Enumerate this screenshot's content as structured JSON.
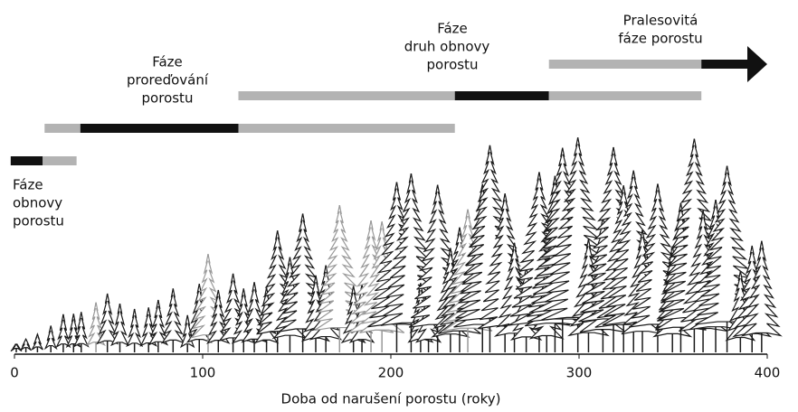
{
  "chart_data": {
    "type": "timeline",
    "xlabel": "Doba od narušení porostu (roky)",
    "xlim": [
      0,
      400
    ],
    "xticks": [
      0,
      100,
      200,
      300,
      400
    ],
    "colors": {
      "core": "#111111",
      "extended": "#b3b3b3"
    },
    "phases": [
      {
        "label": [
          "Fáze",
          "obnovy",
          "porostu"
        ],
        "segments": [
          {
            "start": -2,
            "end": 15,
            "kind": "core"
          },
          {
            "start": 15,
            "end": 33,
            "kind": "extended"
          }
        ]
      },
      {
        "label": [
          "Fáze",
          "proreďování",
          "porostu"
        ],
        "segments": [
          {
            "start": 16,
            "end": 35,
            "kind": "extended"
          },
          {
            "start": 35,
            "end": 119,
            "kind": "core"
          },
          {
            "start": 119,
            "end": 234,
            "kind": "extended"
          }
        ]
      },
      {
        "label": [
          "Fáze",
          "druh  obnovy",
          "porostu"
        ],
        "segments": [
          {
            "start": 119,
            "end": 234,
            "kind": "extended"
          },
          {
            "start": 234,
            "end": 284,
            "kind": "core"
          },
          {
            "start": 284,
            "end": 365,
            "kind": "extended"
          }
        ]
      },
      {
        "label": [
          "Pralesovitá",
          "fáze porostu"
        ],
        "arrow": true,
        "segments": [
          {
            "start": 284,
            "end": 365,
            "kind": "extended"
          },
          {
            "start": 365,
            "end": 400,
            "kind": "core"
          }
        ]
      }
    ]
  }
}
